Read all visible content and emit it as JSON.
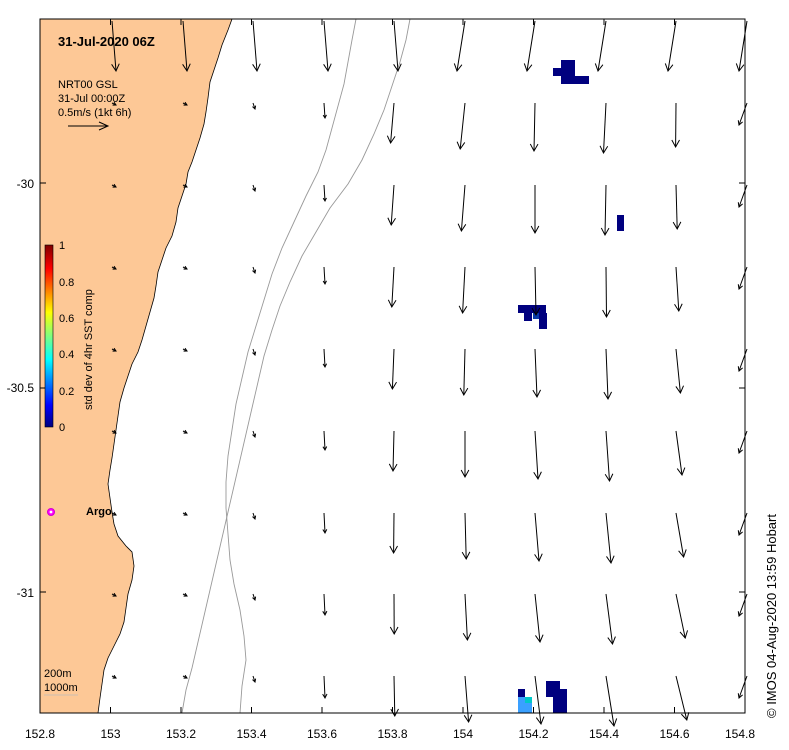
{
  "title": "31-Jul-2020 06Z",
  "legend_block": {
    "line1": "NRT00 GSL",
    "line2": "31-Jul 00:00Z",
    "line3": "0.5m/s (1kt 6h)"
  },
  "colorbar": {
    "label": "std dev of 4hr SST comp",
    "ticks": [
      "1",
      "0.8",
      "0.6",
      "0.4",
      "0.2",
      "0"
    ],
    "range": [
      0,
      1
    ],
    "colors": [
      "#00007f",
      "#0000ff",
      "#007fff",
      "#00ffff",
      "#7fff7f",
      "#ffff00",
      "#ff7f00",
      "#ff0000",
      "#7f0000"
    ]
  },
  "x_axis": {
    "range": [
      152.8,
      154.8
    ],
    "ticks": [
      "152.8",
      "153",
      "153.2",
      "153.4",
      "153.6",
      "153.8",
      "154",
      "154.2",
      "154.4",
      "154.6",
      "154.8"
    ]
  },
  "y_axis": {
    "range": [
      -31.3,
      -29.6
    ],
    "ticks": [
      "-30",
      "-30.5",
      "-31"
    ]
  },
  "markers": {
    "argo_label": "Argo",
    "argo_color": "#ff00ff"
  },
  "depth_labels": {
    "d200": "200m",
    "d1000": "1000m"
  },
  "land_color": "#fdc896",
  "credit": "© IMOS 04-Aug-2020 13:59 Hobart"
}
